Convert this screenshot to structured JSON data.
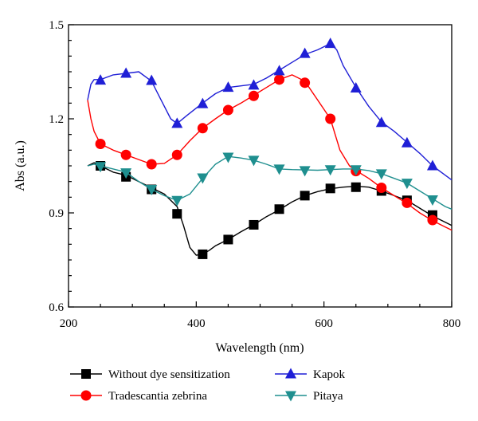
{
  "chart_data": {
    "type": "line",
    "xlabel": "Wavelength (nm)",
    "ylabel": "Abs (a.u.)",
    "xlim": [
      200,
      800
    ],
    "ylim": [
      0.6,
      1.5
    ],
    "xticks": [
      "200",
      "400",
      "600",
      "800"
    ],
    "yticks": [
      "0.6",
      "0.9",
      "1.2",
      "1.5"
    ],
    "grid": false,
    "legend_position": "bottom",
    "series": [
      {
        "name": "Without dye sensitization",
        "color": "#000000",
        "marker": "square",
        "curve": [
          [
            230,
            1.05
          ],
          [
            240,
            1.06
          ],
          [
            250,
            1.05
          ],
          [
            270,
            1.03
          ],
          [
            290,
            1.02
          ],
          [
            310,
            1.0
          ],
          [
            330,
            0.98
          ],
          [
            350,
            0.96
          ],
          [
            370,
            0.92
          ],
          [
            380,
            0.86
          ],
          [
            390,
            0.79
          ],
          [
            400,
            0.765
          ],
          [
            410,
            0.768
          ],
          [
            420,
            0.78
          ],
          [
            430,
            0.795
          ],
          [
            450,
            0.815
          ],
          [
            470,
            0.84
          ],
          [
            490,
            0.862
          ],
          [
            510,
            0.888
          ],
          [
            530,
            0.91
          ],
          [
            550,
            0.935
          ],
          [
            570,
            0.955
          ],
          [
            590,
            0.968
          ],
          [
            610,
            0.977
          ],
          [
            630,
            0.982
          ],
          [
            650,
            0.985
          ],
          [
            670,
            0.982
          ],
          [
            690,
            0.97
          ],
          [
            710,
            0.955
          ],
          [
            730,
            0.94
          ],
          [
            750,
            0.915
          ],
          [
            770,
            0.89
          ],
          [
            790,
            0.87
          ],
          [
            800,
            0.86
          ]
        ],
        "markers": [
          [
            250,
            1.05
          ],
          [
            290,
            1.015
          ],
          [
            330,
            0.975
          ],
          [
            370,
            0.897
          ],
          [
            410,
            0.768
          ],
          [
            450,
            0.815
          ],
          [
            490,
            0.862
          ],
          [
            530,
            0.912
          ],
          [
            570,
            0.955
          ],
          [
            610,
            0.978
          ],
          [
            650,
            0.982
          ],
          [
            690,
            0.97
          ],
          [
            730,
            0.94
          ],
          [
            770,
            0.893
          ]
        ]
      },
      {
        "name": "Tradescantia zebrina",
        "color": "#ff0000",
        "marker": "circle",
        "curve": [
          [
            230,
            1.26
          ],
          [
            235,
            1.2
          ],
          [
            240,
            1.16
          ],
          [
            250,
            1.12
          ],
          [
            270,
            1.1
          ],
          [
            290,
            1.085
          ],
          [
            310,
            1.07
          ],
          [
            330,
            1.055
          ],
          [
            350,
            1.058
          ],
          [
            370,
            1.085
          ],
          [
            390,
            1.13
          ],
          [
            410,
            1.17
          ],
          [
            430,
            1.2
          ],
          [
            450,
            1.228
          ],
          [
            470,
            1.25
          ],
          [
            490,
            1.275
          ],
          [
            510,
            1.3
          ],
          [
            530,
            1.325
          ],
          [
            550,
            1.34
          ],
          [
            570,
            1.32
          ],
          [
            590,
            1.26
          ],
          [
            610,
            1.2
          ],
          [
            625,
            1.1
          ],
          [
            640,
            1.05
          ],
          [
            650,
            1.035
          ],
          [
            670,
            1.01
          ],
          [
            690,
            0.98
          ],
          [
            710,
            0.955
          ],
          [
            730,
            0.93
          ],
          [
            750,
            0.9
          ],
          [
            770,
            0.875
          ],
          [
            790,
            0.855
          ],
          [
            800,
            0.845
          ]
        ],
        "markers": [
          [
            250,
            1.12
          ],
          [
            290,
            1.085
          ],
          [
            330,
            1.055
          ],
          [
            370,
            1.085
          ],
          [
            410,
            1.17
          ],
          [
            450,
            1.228
          ],
          [
            490,
            1.273
          ],
          [
            530,
            1.325
          ],
          [
            570,
            1.315
          ],
          [
            610,
            1.2
          ],
          [
            650,
            1.033
          ],
          [
            690,
            0.98
          ],
          [
            730,
            0.932
          ],
          [
            770,
            0.877
          ]
        ]
      },
      {
        "name": "Kapok",
        "color": "#1f1fd6",
        "marker": "triangle-up",
        "curve": [
          [
            230,
            1.26
          ],
          [
            235,
            1.31
          ],
          [
            240,
            1.325
          ],
          [
            250,
            1.325
          ],
          [
            270,
            1.34
          ],
          [
            290,
            1.345
          ],
          [
            310,
            1.35
          ],
          [
            330,
            1.32
          ],
          [
            345,
            1.26
          ],
          [
            360,
            1.2
          ],
          [
            370,
            1.185
          ],
          [
            385,
            1.21
          ],
          [
            410,
            1.25
          ],
          [
            430,
            1.28
          ],
          [
            450,
            1.3
          ],
          [
            470,
            1.305
          ],
          [
            490,
            1.31
          ],
          [
            510,
            1.33
          ],
          [
            530,
            1.355
          ],
          [
            550,
            1.38
          ],
          [
            570,
            1.405
          ],
          [
            590,
            1.42
          ],
          [
            610,
            1.44
          ],
          [
            620,
            1.42
          ],
          [
            630,
            1.37
          ],
          [
            650,
            1.3
          ],
          [
            670,
            1.24
          ],
          [
            690,
            1.19
          ],
          [
            710,
            1.16
          ],
          [
            730,
            1.125
          ],
          [
            750,
            1.09
          ],
          [
            770,
            1.05
          ],
          [
            790,
            1.02
          ],
          [
            800,
            1.005
          ]
        ],
        "markers": [
          [
            250,
            1.323
          ],
          [
            290,
            1.345
          ],
          [
            330,
            1.322
          ],
          [
            370,
            1.185
          ],
          [
            410,
            1.248
          ],
          [
            450,
            1.3
          ],
          [
            490,
            1.307
          ],
          [
            530,
            1.353
          ],
          [
            570,
            1.408
          ],
          [
            610,
            1.44
          ],
          [
            650,
            1.298
          ],
          [
            690,
            1.188
          ],
          [
            730,
            1.123
          ],
          [
            770,
            1.05
          ]
        ]
      },
      {
        "name": "Pitaya",
        "color": "#1f8f8f",
        "marker": "triangle-down",
        "curve": [
          [
            230,
            1.05
          ],
          [
            240,
            1.055
          ],
          [
            250,
            1.05
          ],
          [
            270,
            1.04
          ],
          [
            290,
            1.03
          ],
          [
            310,
            1.0
          ],
          [
            330,
            0.975
          ],
          [
            350,
            0.955
          ],
          [
            370,
            0.94
          ],
          [
            390,
            0.96
          ],
          [
            410,
            1.01
          ],
          [
            430,
            1.055
          ],
          [
            450,
            1.08
          ],
          [
            470,
            1.075
          ],
          [
            490,
            1.068
          ],
          [
            510,
            1.055
          ],
          [
            530,
            1.04
          ],
          [
            550,
            1.038
          ],
          [
            570,
            1.037
          ],
          [
            590,
            1.036
          ],
          [
            610,
            1.038
          ],
          [
            630,
            1.04
          ],
          [
            650,
            1.04
          ],
          [
            670,
            1.035
          ],
          [
            690,
            1.025
          ],
          [
            710,
            1.01
          ],
          [
            730,
            0.995
          ],
          [
            750,
            0.97
          ],
          [
            770,
            0.945
          ],
          [
            790,
            0.92
          ],
          [
            800,
            0.912
          ]
        ],
        "markers": [
          [
            250,
            1.048
          ],
          [
            290,
            1.028
          ],
          [
            330,
            0.975
          ],
          [
            370,
            0.94
          ],
          [
            410,
            1.012
          ],
          [
            450,
            1.078
          ],
          [
            490,
            1.068
          ],
          [
            530,
            1.04
          ],
          [
            570,
            1.035
          ],
          [
            610,
            1.038
          ],
          [
            650,
            1.038
          ],
          [
            690,
            1.025
          ],
          [
            730,
            0.995
          ],
          [
            770,
            0.942
          ]
        ]
      }
    ]
  }
}
